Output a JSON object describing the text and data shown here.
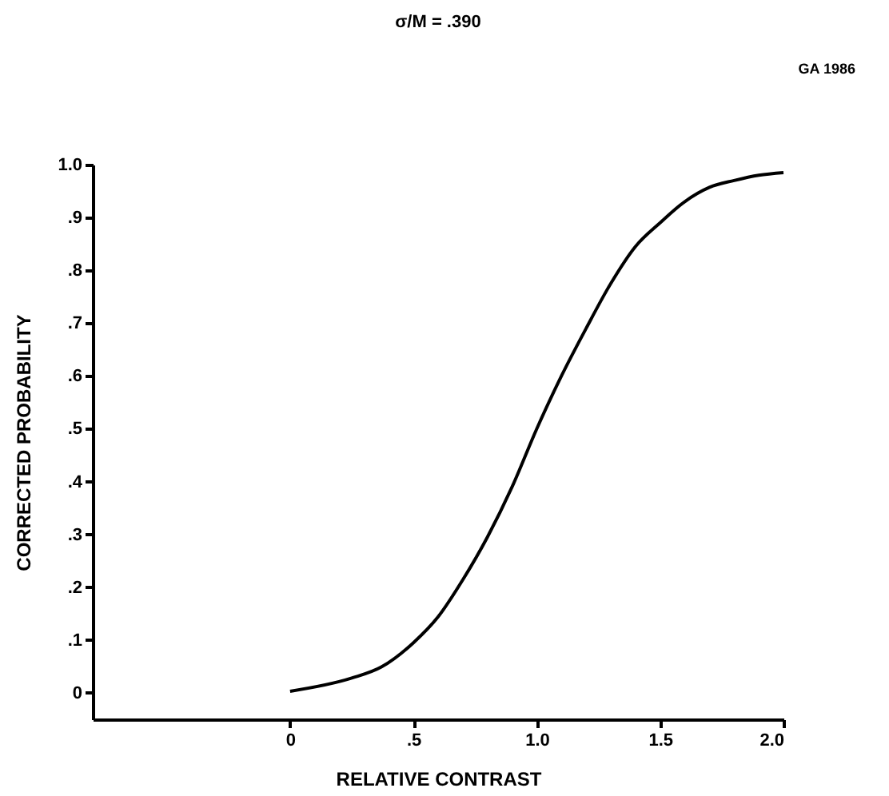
{
  "chart_data": {
    "type": "line",
    "title": "σ/M = .390",
    "xlabel": "RELATIVE CONTRAST",
    "ylabel": "CORRECTED PROBABILITY",
    "annotations": [
      "GA 1986"
    ],
    "x": [
      0,
      0.25,
      0.37,
      0.5,
      0.6,
      0.7,
      0.8,
      0.9,
      1.0,
      1.1,
      1.2,
      1.3,
      1.4,
      1.5,
      1.6,
      1.7,
      1.8,
      1.9,
      2.0
    ],
    "series": [
      {
        "color": "#000000",
        "values": [
          0.003,
          0.028,
          0.049,
          0.095,
          0.144,
          0.214,
          0.295,
          0.39,
          0.5,
          0.6,
          0.69,
          0.775,
          0.845,
          0.89,
          0.93,
          0.957,
          0.97,
          0.98,
          0.985
        ]
      }
    ],
    "xlim": [
      -0.8,
      2.0
    ],
    "ylim": [
      -0.05,
      1.0
    ],
    "xticks": [
      0,
      {
        "value": 0.5,
        "label": ".5"
      },
      {
        "value": 1.0,
        "label": "1.0"
      },
      {
        "value": 1.5,
        "label": "1.5"
      },
      {
        "value": 2.0,
        "label": "2.0"
      }
    ],
    "yticks": [
      0,
      {
        "value": 0.1,
        "label": ".1"
      },
      {
        "value": 0.2,
        "label": ".2"
      },
      {
        "value": 0.3,
        "label": ".3"
      },
      {
        "value": 0.4,
        "label": ".4"
      },
      {
        "value": 0.5,
        "label": ".5"
      },
      {
        "value": 0.6,
        "label": ".6"
      },
      {
        "value": 0.7,
        "label": ".7"
      },
      {
        "value": 0.8,
        "label": ".8"
      },
      {
        "value": 0.9,
        "label": ".9"
      },
      {
        "value": 1.0,
        "label": "1.0"
      }
    ],
    "grid": false,
    "marker": "none",
    "line_style": "solid"
  }
}
